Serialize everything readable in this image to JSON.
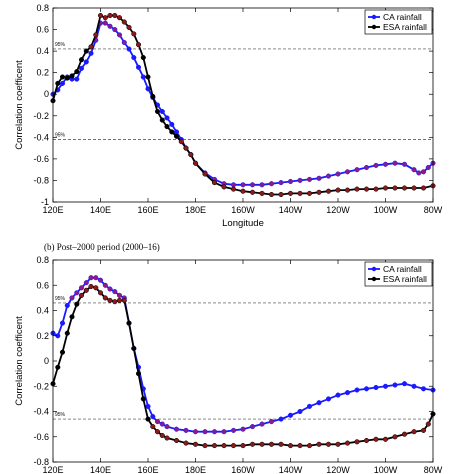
{
  "chart_data": [
    {
      "type": "line",
      "title": "",
      "xlabel": "Longitude",
      "ylabel": "Correlation coefficent",
      "ylim": [
        -1,
        0.8
      ],
      "xlim": [
        120,
        280
      ],
      "xticks": [
        120,
        140,
        160,
        180,
        200,
        220,
        240,
        260,
        280
      ],
      "xtick_labels": [
        "120E",
        "140E",
        "160E",
        "180E",
        "160W",
        "140W",
        "120W",
        "100W",
        "80W"
      ],
      "yticks": [
        -1,
        -0.8,
        -0.6,
        -0.4,
        -0.2,
        0,
        0.2,
        0.4,
        0.6,
        0.8
      ],
      "ytick_labels": [
        "-1",
        "-0.8",
        "-0.6",
        "-0.4",
        "-0.2",
        "0",
        "0.2",
        "0.4",
        "0.6",
        "0.8"
      ],
      "grid": false,
      "legend": "top-right",
      "significance": {
        "upper": 0.42,
        "lower": -0.42,
        "upper_label": "95%",
        "lower_label": "95%"
      },
      "series": [
        {
          "name": "CA rainfall",
          "color": "#1a1aff",
          "x": [
            120,
            122,
            124,
            126,
            128,
            130,
            132,
            134,
            136,
            138,
            140,
            142,
            144,
            146,
            148,
            150,
            152,
            154,
            156,
            158,
            160,
            162,
            164,
            166,
            168,
            170,
            172,
            174,
            176,
            178,
            180,
            184,
            188,
            192,
            196,
            200,
            204,
            208,
            212,
            216,
            220,
            224,
            228,
            232,
            236,
            240,
            244,
            248,
            252,
            256,
            260,
            264,
            268,
            272,
            274,
            276,
            278,
            280
          ],
          "y": [
            0.0,
            0.04,
            0.1,
            0.16,
            0.14,
            0.14,
            0.24,
            0.3,
            0.38,
            0.5,
            0.66,
            0.66,
            0.63,
            0.6,
            0.55,
            0.48,
            0.42,
            0.34,
            0.25,
            0.16,
            0.05,
            -0.03,
            -0.1,
            -0.16,
            -0.22,
            -0.28,
            -0.35,
            -0.42,
            -0.5,
            -0.56,
            -0.64,
            -0.73,
            -0.79,
            -0.83,
            -0.84,
            -0.84,
            -0.84,
            -0.84,
            -0.83,
            -0.82,
            -0.81,
            -0.8,
            -0.79,
            -0.78,
            -0.76,
            -0.74,
            -0.72,
            -0.7,
            -0.68,
            -0.66,
            -0.65,
            -0.64,
            -0.65,
            -0.7,
            -0.73,
            -0.72,
            -0.68,
            -0.64
          ]
        },
        {
          "name": "ESA rainfall",
          "color": "#000000",
          "x": [
            120,
            122,
            124,
            126,
            128,
            130,
            132,
            134,
            136,
            138,
            140,
            142,
            144,
            146,
            148,
            150,
            152,
            154,
            156,
            158,
            160,
            162,
            164,
            166,
            168,
            170,
            172,
            174,
            176,
            178,
            180,
            184,
            188,
            192,
            196,
            200,
            204,
            208,
            212,
            216,
            220,
            224,
            228,
            232,
            236,
            240,
            244,
            248,
            252,
            256,
            260,
            264,
            268,
            272,
            276,
            280
          ],
          "y": [
            -0.06,
            0.1,
            0.16,
            0.15,
            0.17,
            0.21,
            0.32,
            0.4,
            0.44,
            0.55,
            0.73,
            0.71,
            0.73,
            0.73,
            0.71,
            0.67,
            0.62,
            0.56,
            0.46,
            0.34,
            0.16,
            -0.02,
            -0.16,
            -0.24,
            -0.3,
            -0.35,
            -0.39,
            -0.44,
            -0.5,
            -0.56,
            -0.64,
            -0.74,
            -0.82,
            -0.86,
            -0.88,
            -0.9,
            -0.91,
            -0.92,
            -0.93,
            -0.93,
            -0.92,
            -0.92,
            -0.92,
            -0.91,
            -0.9,
            -0.89,
            -0.89,
            -0.88,
            -0.88,
            -0.88,
            -0.87,
            -0.87,
            -0.87,
            -0.87,
            -0.87,
            -0.85
          ]
        }
      ]
    },
    {
      "type": "line",
      "title": "(b) Post–2000 period (2000–16)",
      "xlabel": "Longitude",
      "ylabel": "Correlation coefficent",
      "ylim": [
        -0.8,
        0.8
      ],
      "xlim": [
        120,
        280
      ],
      "xticks": [
        120,
        140,
        160,
        180,
        200,
        220,
        240,
        260,
        280
      ],
      "xtick_labels": [
        "120E",
        "140E",
        "160E",
        "180E",
        "160W",
        "140W",
        "120W",
        "100W",
        "80W"
      ],
      "yticks": [
        -0.8,
        -0.6,
        -0.4,
        -0.2,
        0,
        0.2,
        0.4,
        0.6,
        0.8
      ],
      "ytick_labels": [
        "-0.8",
        "-0.6",
        "-0.4",
        "-0.2",
        "0",
        "0.2",
        "0.4",
        "0.6",
        "0.8"
      ],
      "grid": false,
      "legend": "top-right",
      "significance": {
        "upper": 0.46,
        "lower": -0.46,
        "upper_label": "95%",
        "lower_label": "95%"
      },
      "series": [
        {
          "name": "CA rainfall",
          "color": "#1a1aff",
          "x": [
            120,
            122,
            124,
            126,
            128,
            130,
            132,
            134,
            136,
            138,
            140,
            142,
            144,
            146,
            148,
            150,
            152,
            154,
            156,
            158,
            160,
            162,
            164,
            166,
            168,
            172,
            176,
            180,
            184,
            188,
            192,
            196,
            200,
            204,
            208,
            212,
            216,
            220,
            224,
            228,
            232,
            236,
            240,
            244,
            248,
            252,
            256,
            260,
            264,
            268,
            272,
            276,
            280
          ],
          "y": [
            0.22,
            0.2,
            0.3,
            0.44,
            0.5,
            0.54,
            0.58,
            0.62,
            0.66,
            0.66,
            0.64,
            0.6,
            0.57,
            0.55,
            0.52,
            0.5,
            0.3,
            0.1,
            -0.05,
            -0.22,
            -0.36,
            -0.44,
            -0.48,
            -0.5,
            -0.52,
            -0.54,
            -0.55,
            -0.56,
            -0.56,
            -0.56,
            -0.56,
            -0.55,
            -0.54,
            -0.52,
            -0.5,
            -0.48,
            -0.46,
            -0.43,
            -0.4,
            -0.36,
            -0.33,
            -0.3,
            -0.27,
            -0.25,
            -0.23,
            -0.22,
            -0.21,
            -0.2,
            -0.19,
            -0.18,
            -0.2,
            -0.22,
            -0.23
          ]
        },
        {
          "name": "ESA rainfall",
          "color": "#000000",
          "x": [
            120,
            122,
            124,
            126,
            128,
            130,
            132,
            134,
            136,
            138,
            140,
            142,
            144,
            146,
            148,
            150,
            152,
            154,
            156,
            158,
            160,
            162,
            164,
            166,
            168,
            172,
            176,
            180,
            184,
            188,
            192,
            196,
            200,
            204,
            208,
            212,
            216,
            220,
            224,
            228,
            232,
            236,
            240,
            244,
            248,
            252,
            256,
            260,
            264,
            268,
            272,
            276,
            278,
            280
          ],
          "y": [
            -0.18,
            -0.05,
            0.07,
            0.22,
            0.35,
            0.45,
            0.52,
            0.56,
            0.59,
            0.58,
            0.54,
            0.5,
            0.48,
            0.47,
            0.48,
            0.48,
            0.3,
            0.1,
            -0.1,
            -0.3,
            -0.46,
            -0.52,
            -0.56,
            -0.59,
            -0.61,
            -0.63,
            -0.65,
            -0.66,
            -0.67,
            -0.67,
            -0.67,
            -0.67,
            -0.67,
            -0.66,
            -0.66,
            -0.66,
            -0.66,
            -0.67,
            -0.67,
            -0.67,
            -0.66,
            -0.66,
            -0.66,
            -0.65,
            -0.64,
            -0.63,
            -0.62,
            -0.62,
            -0.6,
            -0.58,
            -0.56,
            -0.55,
            -0.5,
            -0.42
          ]
        }
      ]
    }
  ]
}
